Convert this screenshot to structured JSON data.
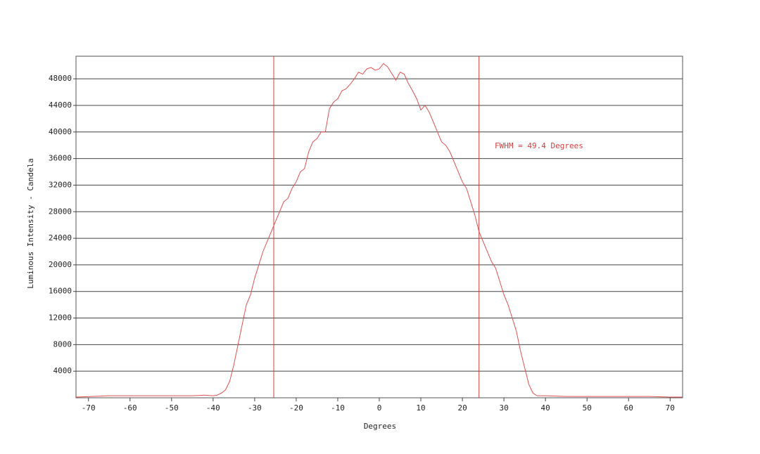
{
  "chart_data": {
    "type": "line",
    "x_label": "Degrees",
    "y_label": "Luminous Intensity - Candela",
    "annotation": "FWHM = 49.4 Degrees",
    "x": [
      -73,
      -65,
      -60,
      -50,
      -45,
      -42,
      -40,
      -39,
      -38,
      -37,
      -36,
      -35,
      -34,
      -33,
      -32,
      -31,
      -30,
      -29,
      -28,
      -27,
      -26,
      -25,
      -24,
      -23,
      -22,
      -21,
      -20,
      -19,
      -18,
      -17,
      -16,
      -15,
      -14,
      -13,
      -12,
      -11,
      -10,
      -9,
      -8,
      -7,
      -6,
      -5,
      -4,
      -3,
      -2,
      -1,
      0,
      1,
      2,
      3,
      4,
      5,
      6,
      7,
      8,
      9,
      10,
      11,
      12,
      13,
      14,
      15,
      16,
      17,
      18,
      19,
      20,
      21,
      22,
      23,
      24,
      25,
      26,
      27,
      28,
      29,
      30,
      31,
      32,
      33,
      34,
      35,
      36,
      37,
      38,
      40,
      45,
      50,
      60,
      65,
      70,
      73
    ],
    "series": [
      {
        "name": "Luminous Intensity",
        "color": "#e05050",
        "values": [
          100,
          300,
          300,
          300,
          300,
          400,
          300,
          400,
          700,
          1200,
          2500,
          5000,
          8000,
          11000,
          14000,
          15500,
          18000,
          20000,
          22000,
          23500,
          25000,
          26500,
          28000,
          29500,
          30000,
          31500,
          32500,
          34000,
          34500,
          37000,
          38500,
          39000,
          40000,
          40000,
          43500,
          44500,
          45000,
          46200,
          46500,
          47200,
          48000,
          49000,
          48700,
          49500,
          49700,
          49300,
          49500,
          50300,
          49800,
          48800,
          47800,
          49000,
          48700,
          47300,
          46200,
          45000,
          43300,
          44000,
          43000,
          41500,
          40000,
          38500,
          38000,
          37000,
          35500,
          34000,
          32500,
          31500,
          29500,
          27500,
          25000,
          23500,
          22000,
          20500,
          19500,
          17500,
          15500,
          14000,
          12000,
          10000,
          7000,
          4500,
          2000,
          700,
          300,
          300,
          200,
          200,
          200,
          200,
          100,
          100
        ]
      }
    ],
    "vlines": [
      -25.4,
      24
    ],
    "vline_color": "#d04040",
    "xlim": [
      -73,
      73
    ],
    "ylim": [
      0,
      51400
    ],
    "xticks": [
      -70,
      -60,
      -50,
      -40,
      -30,
      -20,
      -10,
      0,
      10,
      20,
      30,
      40,
      50,
      60,
      70
    ],
    "yticks": [
      4000,
      8000,
      12000,
      16000,
      20000,
      24000,
      28000,
      32000,
      36000,
      40000,
      44000,
      48000
    ],
    "grid": true
  }
}
